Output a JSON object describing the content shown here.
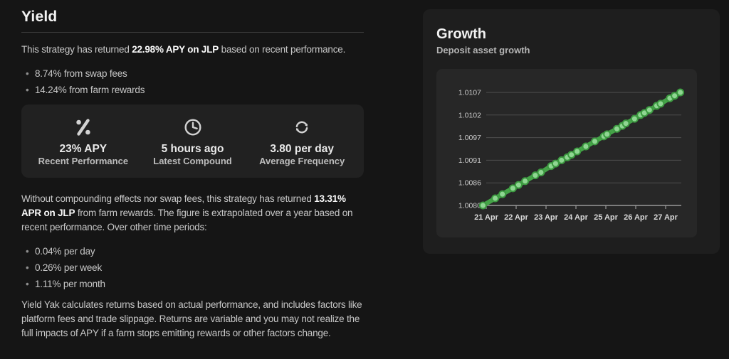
{
  "yield_section": {
    "title": "Yield",
    "intro": {
      "prefix": "This strategy has returned ",
      "bold": "22.98% APY on JLP",
      "suffix": " based on recent performance."
    },
    "breakdown": [
      "8.74% from swap fees",
      "14.24% from farm rewards"
    ],
    "stats": [
      {
        "icon": "percent-icon",
        "value": "23% APY",
        "label": "Recent Performance"
      },
      {
        "icon": "clock-icon",
        "value": "5 hours ago",
        "label": "Latest Compound"
      },
      {
        "icon": "refresh-icon",
        "value": "3.80 per day",
        "label": "Average Frequency"
      }
    ],
    "apr": {
      "prefix": "Without compounding effects nor swap fees, this strategy has returned ",
      "bold": "13.31% APR on JLP",
      "suffix": " from farm rewards. The figure is extrapolated over a year based on recent performance. Over other time periods:"
    },
    "periods": [
      "0.04% per day",
      "0.26% per week",
      "1.11% per month"
    ],
    "disclaimer": "Yield Yak calculates returns based on actual performance, and includes factors like platform fees and trade slippage. Returns are variable and you may not realize the full impacts of APY if a farm stops emitting rewards or other factors change."
  },
  "growth_card": {
    "title": "Growth",
    "subtitle": "Deposit asset growth"
  },
  "colors": {
    "page_bg": "#151515",
    "card_bg": "#1e1e1e",
    "panel_bg": "#272727",
    "accent_green": "#45a348"
  },
  "chart_data": {
    "type": "line",
    "title": "Growth",
    "subtitle": "Deposit asset growth",
    "grid": true,
    "legend": "none",
    "ylim": [
      1.008,
      1.0107
    ],
    "y_tick_labels": [
      "1.0080",
      "1.0086",
      "1.0091",
      "1.0097",
      "1.0102",
      "1.0107"
    ],
    "x_tick_labels": [
      "21 Apr",
      "22 Apr",
      "23 Apr",
      "24 Apr",
      "25 Apr",
      "26 Apr",
      "27 Apr"
    ],
    "x_tick_days": [
      0,
      1,
      2,
      3,
      4,
      5,
      6
    ],
    "series": [
      {
        "name": "Deposit asset growth",
        "color": "#45a348",
        "marker_fill": "#8fd692",
        "marker_stroke": "#3d9a41",
        "points": [
          [
            -0.11,
            1.008
          ],
          [
            0.3,
            1.00817
          ],
          [
            0.54,
            1.00827
          ],
          [
            0.89,
            1.00841
          ],
          [
            1.08,
            1.00849
          ],
          [
            1.3,
            1.00858
          ],
          [
            1.64,
            1.00872
          ],
          [
            1.83,
            1.00879
          ],
          [
            2.17,
            1.00894
          ],
          [
            2.32,
            1.009
          ],
          [
            2.52,
            1.00908
          ],
          [
            2.71,
            1.00915
          ],
          [
            2.85,
            1.00921
          ],
          [
            3.04,
            1.00929
          ],
          [
            3.33,
            1.00941
          ],
          [
            3.63,
            1.00953
          ],
          [
            3.93,
            1.00965
          ],
          [
            4.04,
            1.0097
          ],
          [
            4.37,
            1.00983
          ],
          [
            4.55,
            1.0099
          ],
          [
            4.67,
            1.00996
          ],
          [
            4.96,
            1.01007
          ],
          [
            5.16,
            1.01016
          ],
          [
            5.29,
            1.01021
          ],
          [
            5.46,
            1.01028
          ],
          [
            5.7,
            1.01038
          ],
          [
            5.83,
            1.01043
          ],
          [
            6.14,
            1.01056
          ],
          [
            6.3,
            1.01062
          ],
          [
            6.49,
            1.0107
          ]
        ]
      }
    ]
  }
}
